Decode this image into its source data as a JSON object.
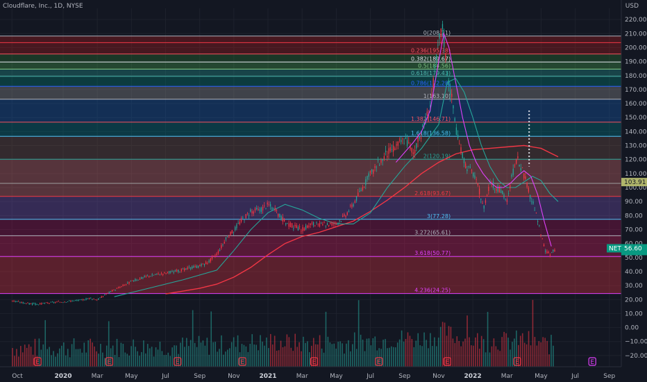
{
  "header": {
    "title": "Cloudflare, Inc., 1D, NYSE",
    "currency": "USD"
  },
  "chart_data": {
    "type": "line",
    "title": "Cloudflare, Inc., 1D, NYSE",
    "xlabel": "",
    "ylabel": "USD",
    "ylim": [
      -28,
      228
    ],
    "y_ticks": [
      "220.00",
      "210.00",
      "200.00",
      "190.00",
      "180.00",
      "170.00",
      "160.00",
      "150.00",
      "140.00",
      "130.00",
      "120.00",
      "110.00",
      "100.00",
      "90.00",
      "80.00",
      "70.00",
      "60.00",
      "50.00",
      "40.00",
      "30.00",
      "20.00",
      "10.00",
      "0.00",
      "−10.00",
      "−20.00"
    ],
    "y_tick_values": [
      220,
      210,
      200,
      190,
      180,
      170,
      160,
      150,
      140,
      130,
      120,
      110,
      100,
      90,
      80,
      70,
      60,
      50,
      40,
      30,
      20,
      10,
      0,
      -10,
      -20
    ],
    "x_ticks": [
      {
        "label": "Oct",
        "t": 0.0,
        "bold": false
      },
      {
        "label": "2020",
        "t": 3.0,
        "bold": true
      },
      {
        "label": "Mar",
        "t": 5.0,
        "bold": false
      },
      {
        "label": "May",
        "t": 7.0,
        "bold": false
      },
      {
        "label": "Jul",
        "t": 9.0,
        "bold": false
      },
      {
        "label": "Sep",
        "t": 11.0,
        "bold": false
      },
      {
        "label": "Nov",
        "t": 13.0,
        "bold": false
      },
      {
        "label": "2021",
        "t": 15.0,
        "bold": true
      },
      {
        "label": "Mar",
        "t": 17.0,
        "bold": false
      },
      {
        "label": "May",
        "t": 19.0,
        "bold": false
      },
      {
        "label": "Jul",
        "t": 21.0,
        "bold": false
      },
      {
        "label": "Sep",
        "t": 23.0,
        "bold": false
      },
      {
        "label": "Nov",
        "t": 25.0,
        "bold": false
      },
      {
        "label": "2022",
        "t": 27.0,
        "bold": true
      },
      {
        "label": "Mar",
        "t": 29.0,
        "bold": false
      },
      {
        "label": "May",
        "t": 31.0,
        "bold": false
      },
      {
        "label": "Jul",
        "t": 33.0,
        "bold": false
      },
      {
        "label": "Sep",
        "t": 35.0,
        "bold": false
      }
    ],
    "xlim": [
      -0.7,
      35.7
    ],
    "price_series": {
      "t": [
        0,
        0.5,
        1,
        1.5,
        2,
        2.5,
        3,
        3.5,
        4,
        4.5,
        5,
        5.5,
        6,
        6.5,
        7,
        7.5,
        8,
        8.5,
        9,
        9.5,
        10,
        10.5,
        11,
        11.5,
        12,
        12.5,
        13,
        13.5,
        14,
        14.5,
        15,
        15.5,
        16,
        16.5,
        17,
        17.5,
        18,
        18.5,
        19,
        19.5,
        20,
        20.5,
        21,
        21.5,
        22,
        22.5,
        23,
        23.5,
        24,
        24.5,
        25,
        25.2,
        25.5,
        25.8,
        26,
        26.3,
        26.6,
        27,
        27.3,
        27.6,
        28,
        28.3,
        28.6,
        29,
        29.3,
        29.6,
        30,
        30.3,
        30.6,
        30.9,
        31.2,
        31.5,
        31.8
      ],
      "close": [
        19,
        18,
        17,
        16.5,
        17.5,
        18,
        18.5,
        19,
        19.5,
        21,
        20,
        24,
        27,
        30,
        33,
        35,
        37,
        38,
        39,
        40,
        41,
        43,
        44,
        47,
        53,
        63,
        70,
        78,
        83,
        84,
        88,
        82,
        75,
        72,
        70,
        74,
        73,
        74,
        75,
        80,
        89,
        100,
        110,
        118,
        125,
        130,
        135,
        125,
        140,
        160,
        205,
        215,
        180,
        160,
        140,
        125,
        115,
        110,
        100,
        85,
        105,
        100,
        98,
        90,
        110,
        120,
        108,
        95,
        85,
        70,
        55,
        52,
        56
      ]
    },
    "ma_short": {
      "name": "",
      "color": "#26a69a",
      "t": [
        6,
        8,
        10,
        12,
        13,
        14,
        15,
        16,
        17,
        18,
        19,
        20,
        21,
        22,
        23,
        24,
        25,
        25.5,
        26,
        26.5,
        27,
        27.5,
        28,
        28.5,
        29,
        29.5,
        30,
        30.5,
        31,
        31.5,
        32
      ],
      "v": [
        22,
        28,
        34,
        41,
        55,
        70,
        82,
        88,
        84,
        78,
        74,
        74,
        82,
        100,
        115,
        128,
        145,
        175,
        178,
        168,
        150,
        130,
        115,
        105,
        100,
        100,
        104,
        108,
        105,
        96,
        90
      ]
    },
    "ma_long": {
      "name": "",
      "color": "#f23645",
      "t": [
        9,
        10,
        11,
        12,
        13,
        14,
        15,
        16,
        17,
        18,
        19,
        20,
        21,
        22,
        23,
        24,
        25,
        26,
        27,
        28,
        29,
        30,
        31,
        32
      ],
      "v": [
        24,
        26,
        28,
        31,
        36,
        43,
        52,
        60,
        65,
        68,
        72,
        76,
        83,
        91,
        100,
        110,
        118,
        124,
        127,
        128,
        129,
        130,
        128,
        122
      ]
    },
    "ma_purple": {
      "name": "",
      "color": "#e040fb",
      "t": [
        22.5,
        23,
        23.5,
        24,
        24.5,
        25,
        25.3,
        25.6,
        26,
        26.4,
        26.8,
        27.2,
        27.6,
        28,
        28.4,
        28.8,
        29.2,
        29.6,
        30,
        30.4,
        30.8,
        31.2,
        31.6
      ],
      "v": [
        118,
        125,
        132,
        140,
        155,
        190,
        210,
        200,
        175,
        150,
        130,
        118,
        110,
        104,
        100,
        100,
        103,
        108,
        112,
        108,
        95,
        75,
        58
      ]
    },
    "fib_levels": [
      {
        "label": "0(208.21)",
        "value": 208.21,
        "color": "#b2b5be",
        "band": "#b71c1c"
      },
      {
        "label": "0.236(195.38)",
        "value": 195.38,
        "color": "#f7525f",
        "band": "#2e7d32"
      },
      {
        "label": "0.382(189.67)",
        "value": 189.67,
        "color": "#e0e3eb",
        "band": "#4caf50"
      },
      {
        "label": "0.5(184.56)",
        "value": 184.56,
        "color": "#81c784",
        "band": "#26a69a"
      },
      {
        "label": "0.618(179.43)",
        "value": 179.43,
        "color": "#4db6ac",
        "band": "#00897b"
      },
      {
        "label": "0.786(172.28)",
        "value": 172.28,
        "color": "#2962ff",
        "band": "#9e9e9e"
      },
      {
        "label": "1(163.10)",
        "value": 163.1,
        "color": "#b2b5be",
        "band": "#1565c0"
      },
      {
        "label": "1.382(146.71)",
        "value": 146.71,
        "color": "#f7525f",
        "band": "#00838f"
      },
      {
        "label": "1.618(136.58)",
        "value": 136.58,
        "color": "#4fc3f7",
        "band": "#795548"
      },
      {
        "label": "2(120.19)",
        "value": 120.19,
        "color": "#26a69a",
        "band": "#e57373"
      },
      {
        "label": "2.618(93.67)",
        "value": 93.67,
        "color": "#f23645",
        "band": "#7e57c2"
      },
      {
        "label": "3(77.28)",
        "value": 77.28,
        "color": "#4fc3f7",
        "band": "#ad1457"
      },
      {
        "label": "3.272(65.61)",
        "value": 65.61,
        "color": "#b2b5be",
        "band": "#e91e63"
      },
      {
        "label": "3.618(50.77)",
        "value": 50.77,
        "color": "#e040fb",
        "band": "#f23645"
      },
      {
        "label": "4.236(24.25)",
        "value": 24.25,
        "color": "#e040fb",
        "band": null
      }
    ],
    "extra_lines": [
      {
        "value": 203.5,
        "color": "#f23645"
      },
      {
        "value": 103.0,
        "color": "#9e9e9e"
      }
    ],
    "price_tags": [
      {
        "label": "103.91",
        "value": 103.91,
        "bg": "#b0b56b",
        "fg": "#131722"
      },
      {
        "label": "NET",
        "value": 56.6,
        "bg": "#089981",
        "fg": "#ffffff"
      },
      {
        "label": "56.60",
        "value": 56.6,
        "bg": "#089981",
        "fg": "#ffffff"
      }
    ],
    "volume": {
      "note": "",
      "up_color": "#26a69a",
      "down_color": "#f23645"
    },
    "earnings_markers": {
      "t": [
        1.5,
        5.7,
        9.7,
        13.5,
        17.7,
        21.5,
        25.5,
        29.6
      ],
      "label": "E",
      "color": "#f23645",
      "future_t": [
        34.0
      ],
      "future_color": "#e040fb"
    },
    "dotted_line": {
      "t": 30.3,
      "from": 115,
      "to": 155,
      "color": "#e0e3eb"
    },
    "grid": true,
    "legend": "none"
  }
}
